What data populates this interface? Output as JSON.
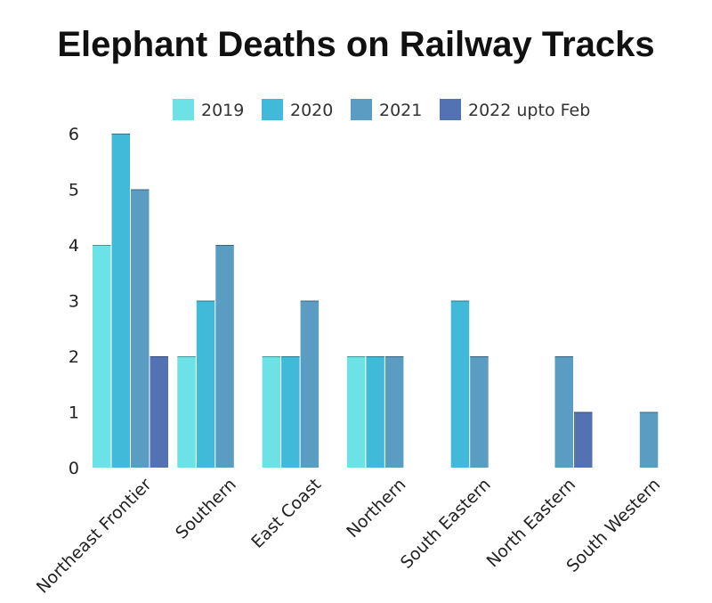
{
  "chart_data": {
    "type": "bar",
    "title": "Elephant Deaths on Railway Tracks",
    "categories": [
      "Northeast Frontier",
      "Southern",
      "East Coast",
      "Northern",
      "South Eastern",
      "North Eastern",
      "South Western"
    ],
    "series": [
      {
        "name": "2019",
        "color": "#6de2e6",
        "values": [
          4,
          2,
          2,
          2,
          0,
          0,
          0
        ]
      },
      {
        "name": "2020",
        "color": "#40bad8",
        "values": [
          6,
          3,
          2,
          2,
          3,
          0,
          0
        ]
      },
      {
        "name": "2021",
        "color": "#5a9cc2",
        "values": [
          5,
          4,
          3,
          2,
          2,
          2,
          1
        ]
      },
      {
        "name": "2022 upto Feb",
        "color": "#5272b4",
        "values": [
          2,
          0,
          0,
          0,
          0,
          1,
          0
        ]
      }
    ],
    "y_ticks": [
      "0",
      "1",
      "2",
      "3",
      "4",
      "5",
      "6"
    ],
    "ylim": [
      0,
      6
    ],
    "grid": false,
    "legend_position": "top"
  }
}
